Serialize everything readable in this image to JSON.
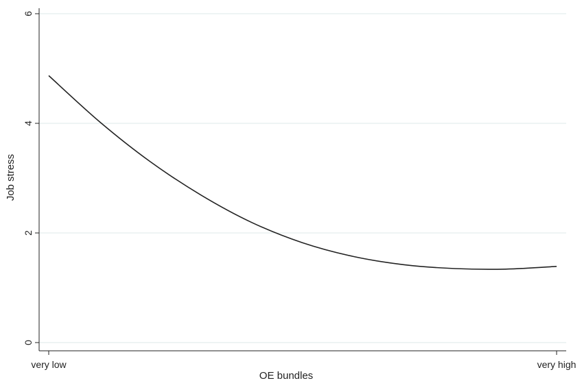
{
  "chart_data": {
    "type": "line",
    "xlabel": "OE bundles",
    "ylabel": "Job stress",
    "x_tick_labels": [
      "very low",
      "very high"
    ],
    "y_ticks": [
      0,
      2,
      4,
      6
    ],
    "ylim": [
      0,
      6
    ],
    "xlim": [
      0,
      1
    ],
    "grid": true,
    "legend": "none",
    "colors": {
      "line": "#222222",
      "grid": "#dde8e8",
      "axis": "#222222"
    },
    "series": [
      {
        "x": [
          0.0,
          0.1,
          0.2,
          0.3,
          0.4,
          0.5,
          0.6,
          0.7,
          0.8,
          0.9,
          1.0
        ],
        "values": [
          4.87,
          4.03,
          3.3,
          2.69,
          2.19,
          1.82,
          1.57,
          1.42,
          1.35,
          1.34,
          1.39
        ]
      }
    ]
  }
}
